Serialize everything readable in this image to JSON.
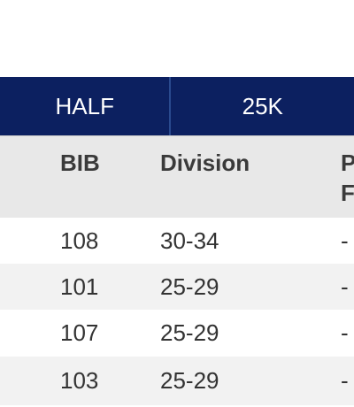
{
  "tabs": [
    {
      "label": "HALF"
    },
    {
      "label": "25K"
    }
  ],
  "table": {
    "columns": [
      "BIB",
      "Division",
      "P\nF"
    ],
    "rows": [
      {
        "bib": "108",
        "division": "30-34",
        "place": "-"
      },
      {
        "bib": "101",
        "division": "25-29",
        "place": "-"
      },
      {
        "bib": "107",
        "division": "25-29",
        "place": "-"
      },
      {
        "bib": "103",
        "division": "25-29",
        "place": "-"
      }
    ]
  },
  "colors": {
    "tab_background": "#0c2060",
    "header_background": "#e8e8e8",
    "row_alt_background": "#f2f2f2"
  }
}
